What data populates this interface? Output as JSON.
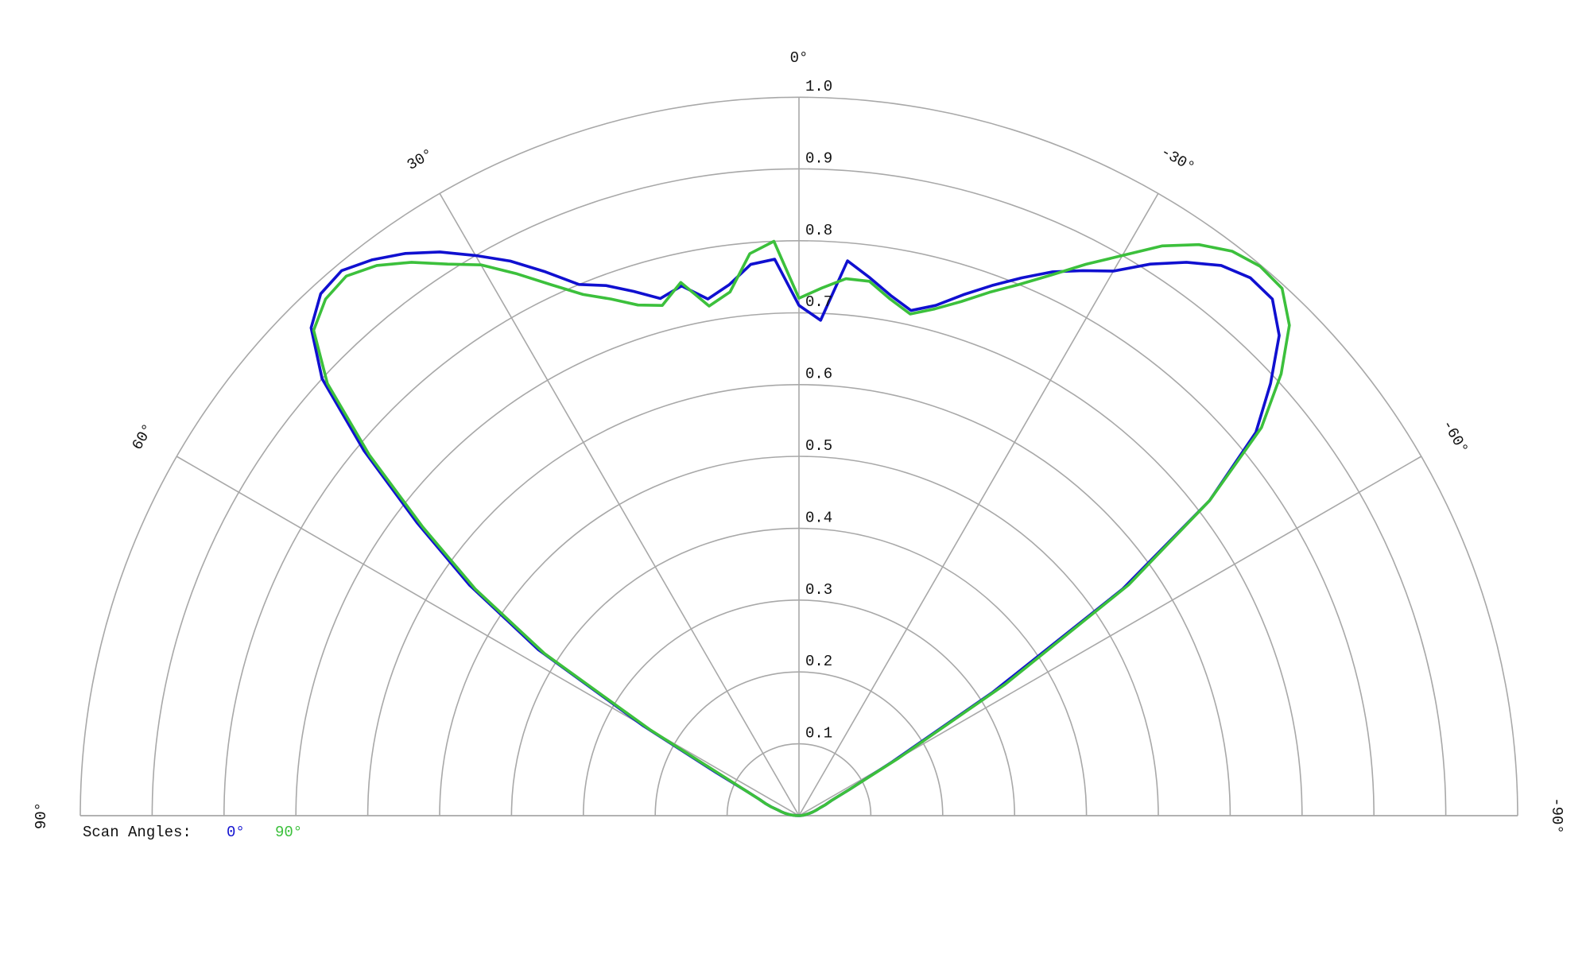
{
  "chart_data": {
    "type": "polar",
    "legend_title": "Scan Angles:",
    "thetalim": [
      90,
      -90
    ],
    "rlim": [
      0,
      1
    ],
    "rticks": [
      0.1,
      0.2,
      0.3,
      0.4,
      0.5,
      0.6,
      0.7,
      0.8,
      0.9,
      {
        "value": 1,
        "label": "1.0"
      }
    ],
    "thetaticks": [
      {
        "value": 90,
        "label": "90°"
      },
      {
        "value": 60,
        "label": "60°"
      },
      {
        "value": 30,
        "label": "30°"
      },
      {
        "value": 0,
        "label": "0°"
      },
      {
        "value": -30,
        "label": "-30°"
      },
      {
        "value": -60,
        "label": "-60°"
      },
      {
        "value": -90,
        "label": "-90°"
      }
    ],
    "grid": true,
    "x": [
      90,
      87.5,
      85,
      82.5,
      80,
      77.5,
      75,
      72.5,
      70,
      67.5,
      65,
      62.5,
      60,
      57.5,
      55,
      52.5,
      50,
      47.5,
      45,
      42.5,
      40,
      37.5,
      35,
      32.5,
      30,
      27.5,
      25,
      22.5,
      20,
      17.5,
      15,
      12.5,
      10,
      7.5,
      5,
      2.5,
      0,
      -2.5,
      -5,
      -7.5,
      -10,
      -12.5,
      -15,
      -17.5,
      -20,
      -22.5,
      -25,
      -27.5,
      -30,
      -32.5,
      -35,
      -37.5,
      -40,
      -42.5,
      -45,
      -47.5,
      -50,
      -52.5,
      -55,
      -57.5,
      -60,
      -62.5,
      -65,
      -67.5,
      -70,
      -72.5,
      -75,
      -77.5,
      -80,
      -82.5,
      -85,
      -87.5,
      -90
    ],
    "series": [
      {
        "name": "0°",
        "color": "#1010d0",
        "values": [
          0,
          0.005,
          0.01,
          0.015,
          0.02,
          0.025,
          0.03,
          0.04,
          0.05,
          0.06,
          0.08,
          0.13,
          0.25,
          0.43,
          0.56,
          0.67,
          0.79,
          0.9,
          0.96,
          0.985,
          0.99,
          0.975,
          0.955,
          0.93,
          0.9,
          0.87,
          0.835,
          0.8,
          0.785,
          0.765,
          0.745,
          0.755,
          0.73,
          0.745,
          0.77,
          0.775,
          0.71,
          0.69,
          0.775,
          0.755,
          0.735,
          0.72,
          0.735,
          0.76,
          0.785,
          0.81,
          0.835,
          0.855,
          0.875,
          0.91,
          0.94,
          0.965,
          0.977,
          0.975,
          0.945,
          0.89,
          0.83,
          0.72,
          0.55,
          0.32,
          0.15,
          0.08,
          0.05,
          0.04,
          0.03,
          0.025,
          0.02,
          0.015,
          0.01,
          0.008,
          0.005,
          0.003,
          0
        ]
      },
      {
        "name": "90°",
        "color": "#3cc03c",
        "values": [
          0,
          0.005,
          0.01,
          0.015,
          0.02,
          0.025,
          0.03,
          0.04,
          0.05,
          0.06,
          0.08,
          0.12,
          0.24,
          0.42,
          0.55,
          0.66,
          0.78,
          0.89,
          0.955,
          0.975,
          0.98,
          0.965,
          0.94,
          0.91,
          0.885,
          0.85,
          0.815,
          0.785,
          0.765,
          0.745,
          0.735,
          0.76,
          0.72,
          0.735,
          0.785,
          0.8,
          0.72,
          0.735,
          0.75,
          0.75,
          0.73,
          0.715,
          0.73,
          0.75,
          0.775,
          0.8,
          0.83,
          0.865,
          0.9,
          0.94,
          0.97,
          0.99,
          0.998,
          0.995,
          0.965,
          0.91,
          0.84,
          0.72,
          0.56,
          0.34,
          0.16,
          0.08,
          0.05,
          0.04,
          0.03,
          0.025,
          0.02,
          0.015,
          0.01,
          0.008,
          0.005,
          0.003,
          0
        ]
      }
    ]
  }
}
